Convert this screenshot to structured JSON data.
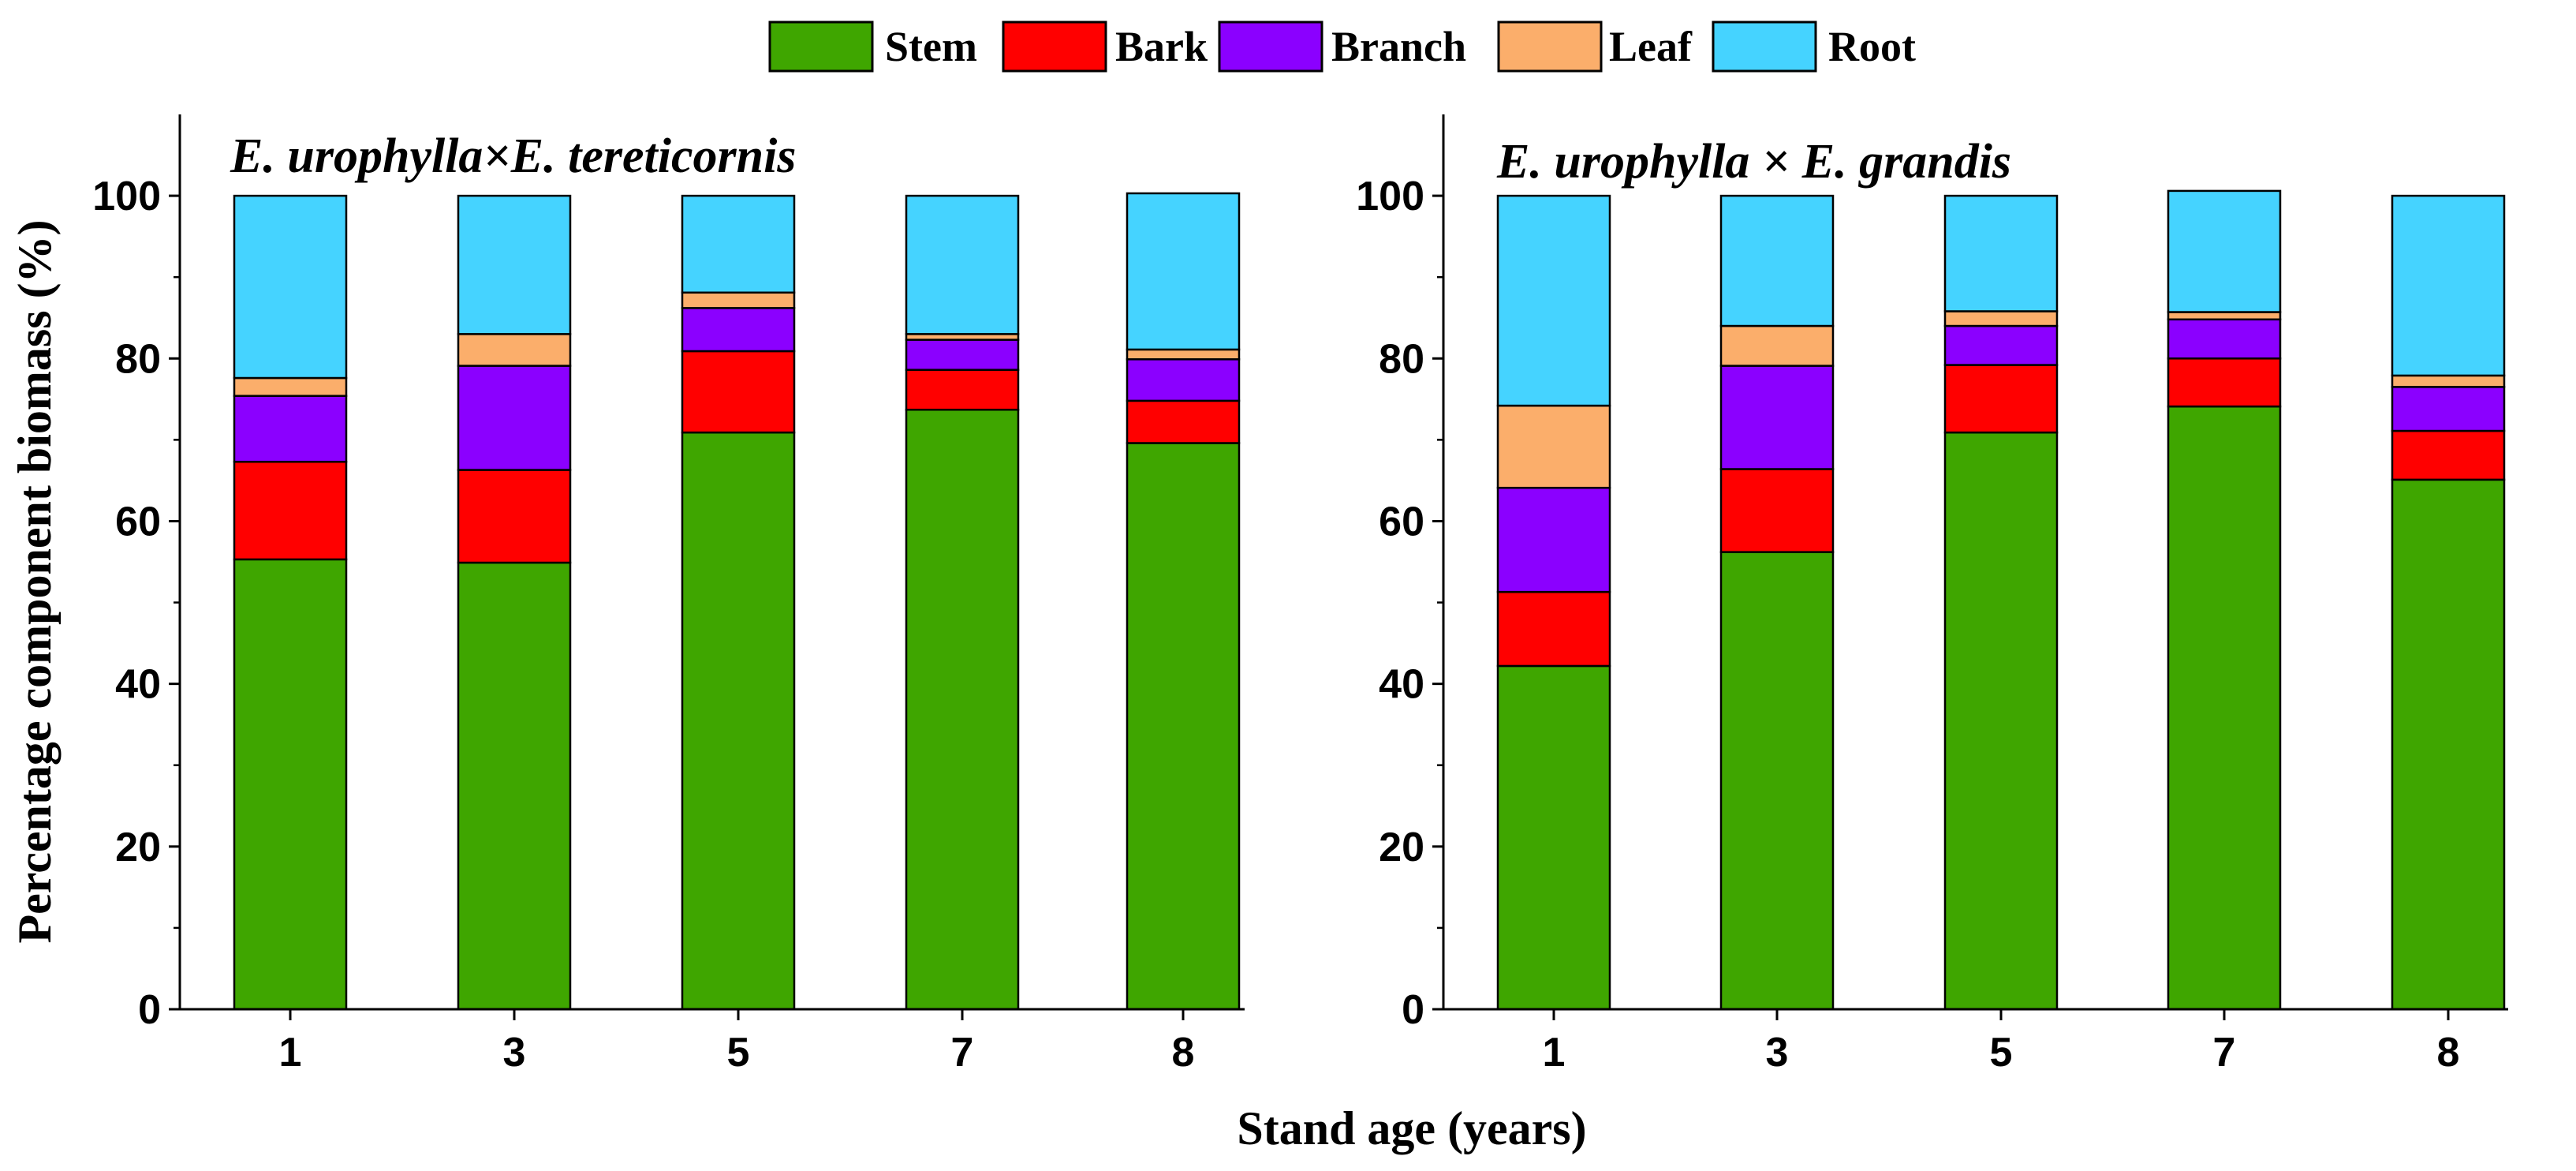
{
  "legend": [
    {
      "name": "Stem",
      "color": "#3fa600"
    },
    {
      "name": "Bark",
      "color": "#ff0000"
    },
    {
      "name": "Branch",
      "color": "#8b00ff"
    },
    {
      "name": "Leaf",
      "color": "#fbae6b"
    },
    {
      "name": "Root",
      "color": "#45d3ff"
    }
  ],
  "ylabel": "Percentage component biomass (%)",
  "xlabel": "Stand age (years)",
  "chart_data": [
    {
      "type": "bar",
      "stacked": true,
      "title": "E. urophylla×E. tereticornis",
      "categories": [
        "1",
        "3",
        "5",
        "7",
        "8"
      ],
      "ylim": [
        0,
        110
      ],
      "yticks": [
        0,
        20,
        40,
        60,
        80,
        100
      ],
      "series": [
        {
          "name": "Stem",
          "values": [
            55.3,
            54.9,
            70.9,
            73.7,
            69.6
          ]
        },
        {
          "name": "Bark",
          "values": [
            12.0,
            11.4,
            10.0,
            4.9,
            5.2
          ]
        },
        {
          "name": "Branch",
          "values": [
            8.1,
            12.8,
            5.3,
            3.7,
            5.1
          ]
        },
        {
          "name": "Leaf",
          "values": [
            2.2,
            3.9,
            1.9,
            0.7,
            1.2
          ]
        },
        {
          "name": "Root",
          "values": [
            22.4,
            17.0,
            11.9,
            17.0,
            19.2
          ]
        }
      ]
    },
    {
      "type": "bar",
      "stacked": true,
      "title": "E. urophylla × E. grandis",
      "categories": [
        "1",
        "3",
        "5",
        "7",
        "8"
      ],
      "ylim": [
        0,
        110
      ],
      "yticks": [
        0,
        20,
        40,
        60,
        80,
        100
      ],
      "series": [
        {
          "name": "Stem",
          "values": [
            42.2,
            56.2,
            70.9,
            74.1,
            65.1
          ]
        },
        {
          "name": "Bark",
          "values": [
            9.1,
            10.2,
            8.3,
            5.9,
            6.0
          ]
        },
        {
          "name": "Branch",
          "values": [
            12.8,
            12.7,
            4.8,
            4.8,
            5.4
          ]
        },
        {
          "name": "Leaf",
          "values": [
            10.1,
            4.9,
            1.8,
            0.9,
            1.4
          ]
        },
        {
          "name": "Root",
          "values": [
            25.8,
            16.0,
            14.2,
            14.9,
            22.1
          ]
        }
      ]
    }
  ]
}
